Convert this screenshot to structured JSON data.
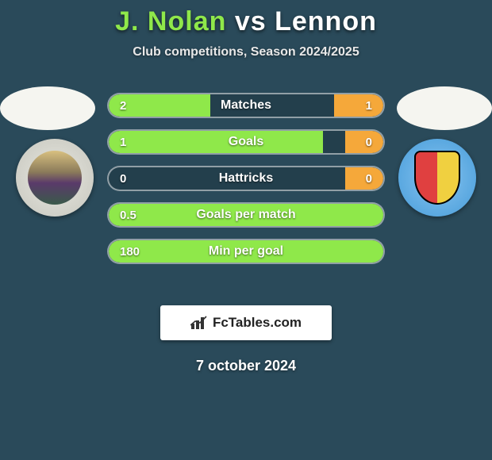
{
  "title": {
    "left": "J. Nolan",
    "vs": "vs",
    "right": "Lennon",
    "left_color": "#8fe84a",
    "right_color": "#ffffff"
  },
  "subtitle": "Club competitions, Season 2024/2025",
  "colors": {
    "left_bar": "#8fe84a",
    "right_bar": "#f5a83a",
    "row_border": "rgba(255,255,255,0.5)",
    "background": "#2a4a5a"
  },
  "stats": [
    {
      "label": "Matches",
      "left_val": "2",
      "right_val": "1",
      "left_pct": 37,
      "right_pct": 18,
      "show_right": true
    },
    {
      "label": "Goals",
      "left_val": "1",
      "right_val": "0",
      "left_pct": 78,
      "right_pct": 14,
      "show_right": true
    },
    {
      "label": "Hattricks",
      "left_val": "0",
      "right_val": "0",
      "left_pct": 0,
      "right_pct": 14,
      "show_right": true
    },
    {
      "label": "Goals per match",
      "left_val": "0.5",
      "right_val": "",
      "left_pct": 100,
      "right_pct": 0,
      "show_right": false
    },
    {
      "label": "Min per goal",
      "left_val": "180",
      "right_val": "",
      "left_pct": 100,
      "right_pct": 0,
      "show_right": false
    }
  ],
  "brand": "FcTables.com",
  "date": "7 october 2024",
  "badges": {
    "left_name": "inverness-badge",
    "right_name": "annan-athletic-badge"
  }
}
